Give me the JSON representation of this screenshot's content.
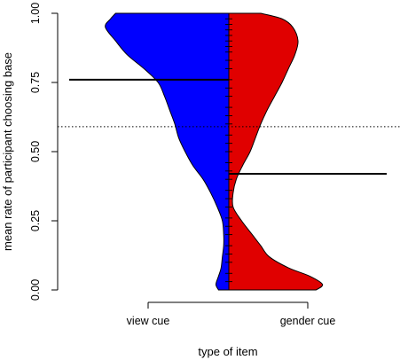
{
  "chart_data": {
    "type": "violin",
    "subtype": "split-bean",
    "xlabel": "type of item",
    "ylabel": "mean rate of participant choosing base",
    "categories": [
      "view cue",
      "gender cue"
    ],
    "ylim": [
      0,
      1
    ],
    "yticks": [
      0.0,
      0.25,
      0.5,
      0.75,
      1.0
    ],
    "ytick_labels": [
      "0.00",
      "0.25",
      "0.50",
      "0.75",
      "1.00"
    ],
    "reference_line": {
      "y": 0.59,
      "style": "dotted"
    },
    "series": [
      {
        "name": "view cue",
        "color": "#0000ff",
        "side": "left",
        "mean": 0.76,
        "density": [
          [
            0.0,
            0.08
          ],
          [
            0.02,
            0.1
          ],
          [
            0.05,
            0.08
          ],
          [
            0.08,
            0.06
          ],
          [
            0.12,
            0.05
          ],
          [
            0.16,
            0.04
          ],
          [
            0.2,
            0.04
          ],
          [
            0.25,
            0.05
          ],
          [
            0.3,
            0.09
          ],
          [
            0.35,
            0.14
          ],
          [
            0.4,
            0.2
          ],
          [
            0.45,
            0.28
          ],
          [
            0.5,
            0.34
          ],
          [
            0.55,
            0.39
          ],
          [
            0.6,
            0.42
          ],
          [
            0.65,
            0.46
          ],
          [
            0.7,
            0.5
          ],
          [
            0.75,
            0.55
          ],
          [
            0.8,
            0.66
          ],
          [
            0.85,
            0.79
          ],
          [
            0.9,
            0.88
          ],
          [
            0.95,
            0.96
          ],
          [
            0.98,
            0.92
          ],
          [
            1.0,
            0.88
          ]
        ]
      },
      {
        "name": "gender cue",
        "color": "#e00000",
        "side": "right",
        "mean": 0.42,
        "density": [
          [
            0.0,
            0.82
          ],
          [
            0.02,
            0.88
          ],
          [
            0.05,
            0.76
          ],
          [
            0.08,
            0.56
          ],
          [
            0.12,
            0.38
          ],
          [
            0.16,
            0.3
          ],
          [
            0.2,
            0.22
          ],
          [
            0.25,
            0.12
          ],
          [
            0.3,
            0.04
          ],
          [
            0.35,
            0.04
          ],
          [
            0.4,
            0.07
          ],
          [
            0.45,
            0.13
          ],
          [
            0.5,
            0.2
          ],
          [
            0.55,
            0.25
          ],
          [
            0.6,
            0.3
          ],
          [
            0.65,
            0.36
          ],
          [
            0.7,
            0.43
          ],
          [
            0.75,
            0.5
          ],
          [
            0.8,
            0.56
          ],
          [
            0.85,
            0.62
          ],
          [
            0.9,
            0.65
          ],
          [
            0.95,
            0.6
          ],
          [
            0.98,
            0.5
          ],
          [
            1.0,
            0.3
          ]
        ]
      }
    ],
    "observation_ticks": [
      0.03,
      0.06,
      0.1,
      0.13,
      0.16,
      0.2,
      0.23,
      0.26,
      0.3,
      0.33,
      0.36,
      0.4,
      0.43,
      0.46,
      0.5,
      0.53,
      0.56,
      0.6,
      0.63,
      0.66,
      0.7,
      0.73,
      0.76,
      0.8,
      0.83,
      0.86,
      0.88,
      0.9,
      0.92,
      0.94,
      0.96,
      0.98
    ]
  }
}
